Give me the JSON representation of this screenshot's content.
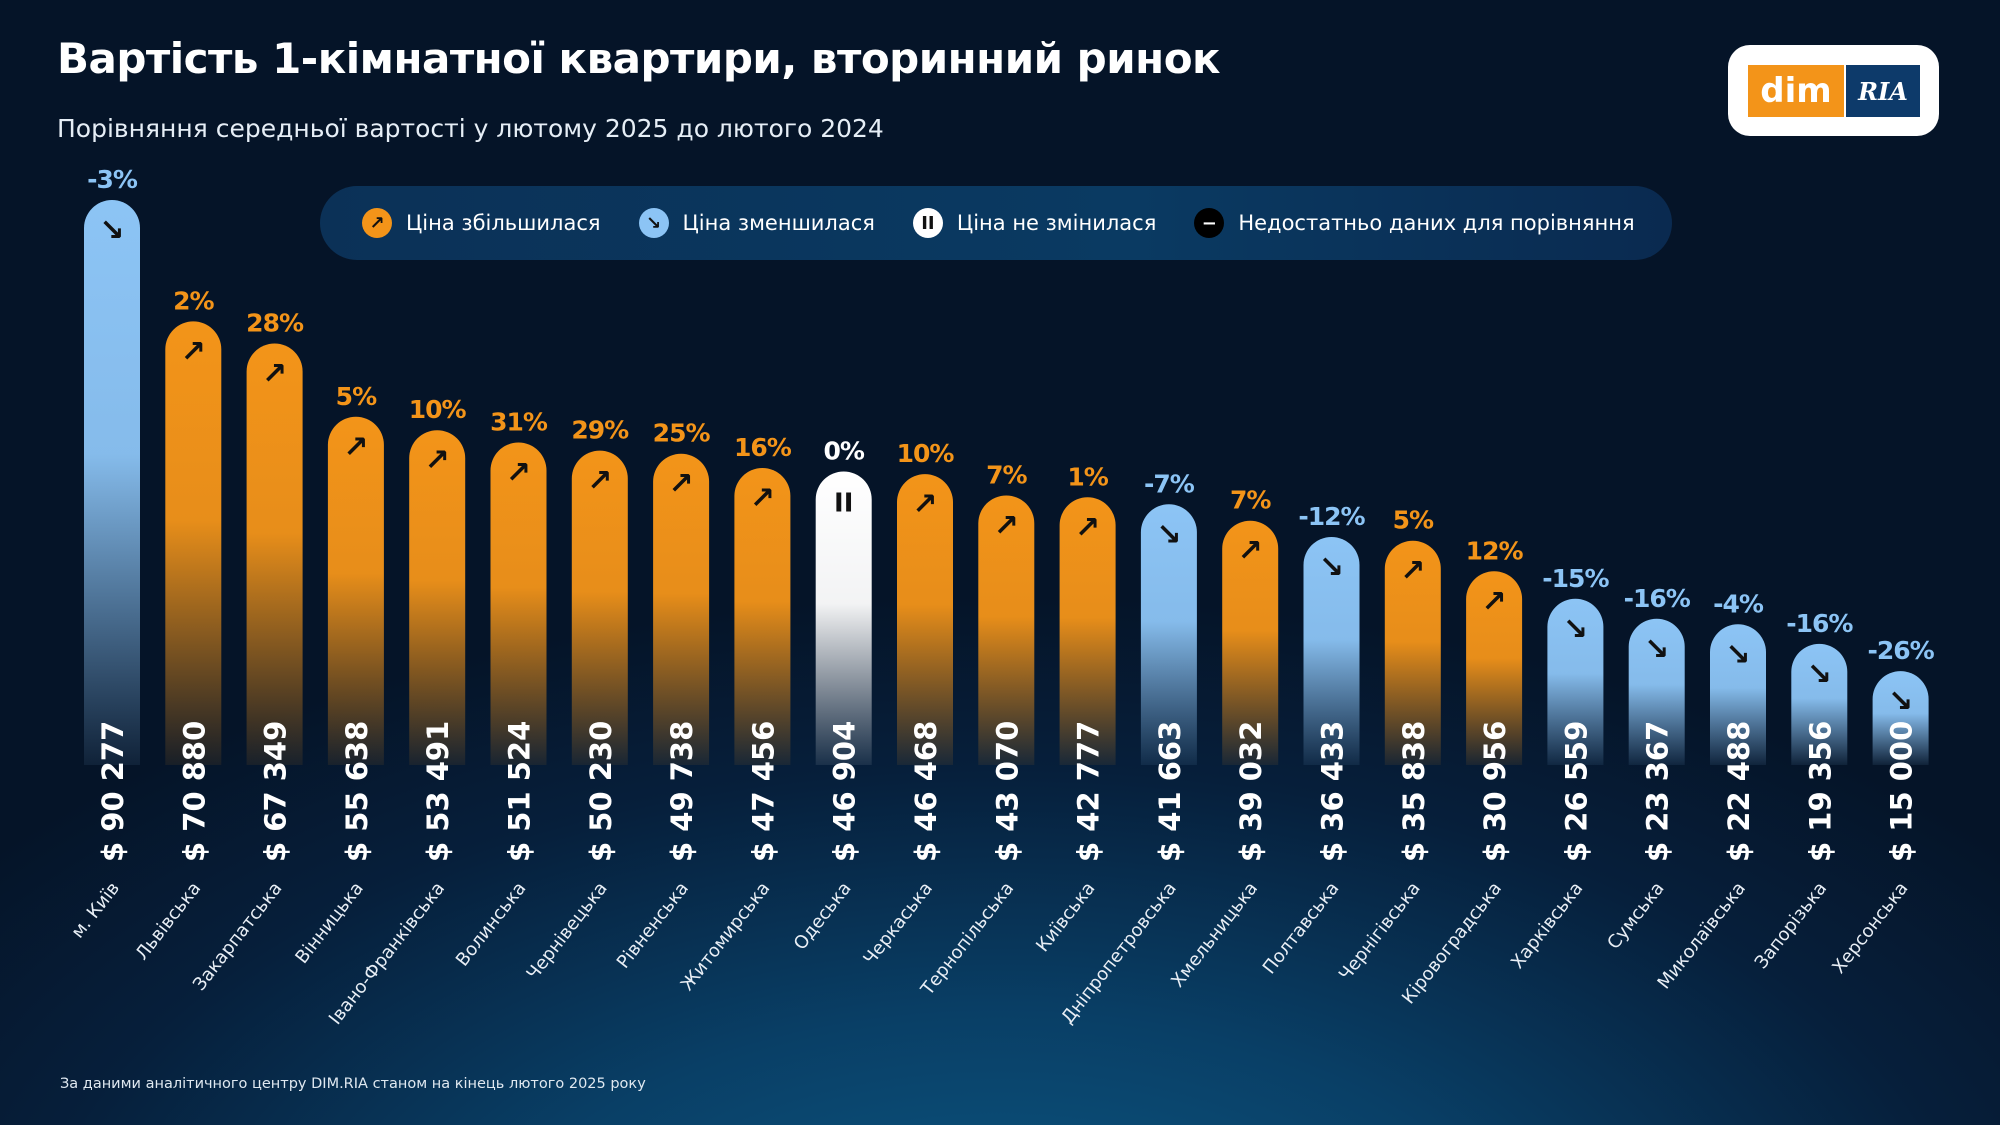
{
  "title": "Вартість 1-кімнатної квартири, вторинний ринок",
  "subtitle": "Порівняння середньої вартості у лютому 2025 до лютого 2024",
  "logo": {
    "dim": "dim",
    "ria": "RIA"
  },
  "legend": [
    {
      "label": "Ціна збільшилася",
      "status": "up",
      "icon": "arrow-up-right-icon"
    },
    {
      "label": "Ціна зменшилася",
      "status": "down",
      "icon": "arrow-down-right-icon"
    },
    {
      "label": "Ціна не змінилася",
      "status": "same",
      "icon": "pause-icon"
    },
    {
      "label": "Недостатньо даних для порівняння",
      "status": "nodata",
      "icon": "minus-icon"
    }
  ],
  "colors": {
    "up": "#f39419",
    "down": "#8cc4f5",
    "same": "#ffffff",
    "nodata": "#000000"
  },
  "footnote": "За даними аналітичного центру DIM.RIA станом на кінець лютого 2025 року",
  "chart_data": {
    "type": "bar",
    "unit": "$",
    "categories": [
      "м. Київ",
      "Львівська",
      "Закарпатська",
      "Вінницька",
      "Івано-Франківська",
      "Волинська",
      "Чернівецька",
      "Рівненська",
      "Житомирська",
      "Одеська",
      "Черкаська",
      "Тернопільська",
      "Київська",
      "Дніпропетровська",
      "Хмельницька",
      "Полтавська",
      "Чернігівська",
      "Кіровоградська",
      "Харківська",
      "Сумська",
      "Миколаївська",
      "Запорізька",
      "Херсонська"
    ],
    "values": [
      90277,
      70880,
      67349,
      55638,
      53491,
      51524,
      50230,
      49738,
      47456,
      46904,
      46468,
      43070,
      42777,
      41663,
      39032,
      36433,
      35838,
      30956,
      26559,
      23367,
      22488,
      19356,
      15000
    ],
    "value_labels": [
      "$ 90 277",
      "$ 70 880",
      "$ 67 349",
      "$ 55 638",
      "$ 53 491",
      "$ 51 524",
      "$ 50 230",
      "$ 49 738",
      "$ 47 456",
      "$ 46 904",
      "$ 46 468",
      "$ 43 070",
      "$ 42 777",
      "$ 41 663",
      "$ 39 032",
      "$ 36 433",
      "$ 35 838",
      "$ 30 956",
      "$ 26 559",
      "$ 23 367",
      "$ 22 488",
      "$ 19 356",
      "$ 15 000"
    ],
    "change_pct": [
      "-3%",
      "2%",
      "28%",
      "5%",
      "10%",
      "31%",
      "29%",
      "25%",
      "16%",
      "0%",
      "10%",
      "7%",
      "1%",
      "-7%",
      "7%",
      "-12%",
      "5%",
      "12%",
      "-15%",
      "-16%",
      "-4%",
      "-16%",
      "-26%"
    ],
    "status": [
      "down",
      "up",
      "up",
      "up",
      "up",
      "up",
      "up",
      "up",
      "up",
      "same",
      "up",
      "up",
      "up",
      "down",
      "up",
      "down",
      "up",
      "up",
      "down",
      "down",
      "down",
      "down",
      "down"
    ],
    "ylim": [
      0,
      90277
    ],
    "grid": false,
    "legend_position": "top"
  }
}
